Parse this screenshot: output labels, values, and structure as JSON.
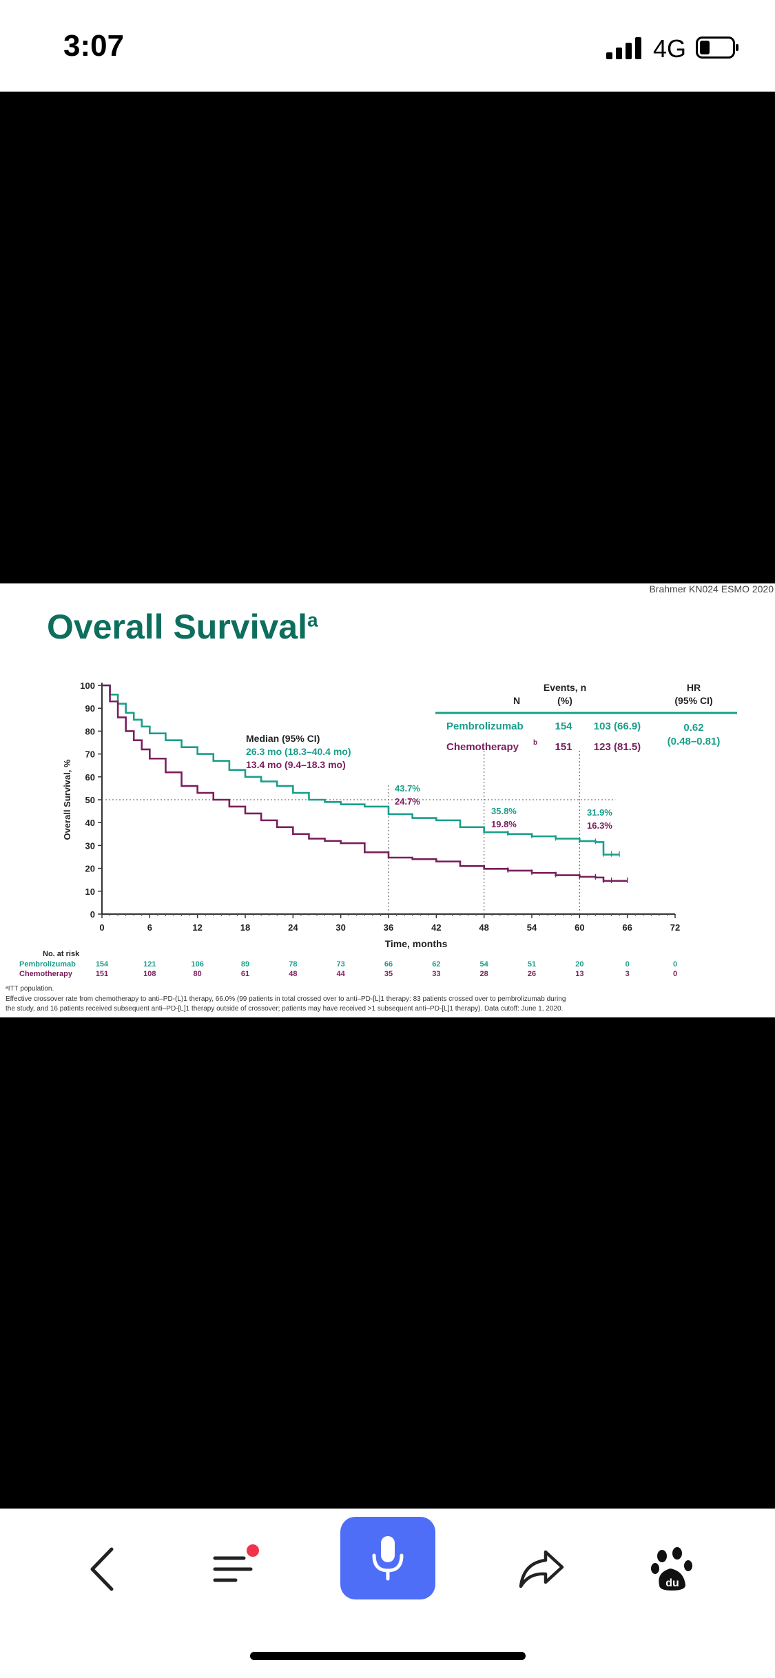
{
  "status_bar": {
    "time": "3:07",
    "network": "4G"
  },
  "slide": {
    "credit": "Brahmer  KN024  ESMO  2020",
    "title": "Overall Survival",
    "title_sup": "a",
    "legend_table": {
      "col_n": "N",
      "col_events_1": "Events, n",
      "col_events_2": "(%)",
      "col_hr_1": "HR",
      "col_hr_2": "(95% CI)",
      "row1_name": "Pembrolizumab",
      "row1_n": "154",
      "row1_events": "103 (66.9)",
      "row2_name": "Chemotherapy",
      "row2_sup": "b",
      "row2_n": "151",
      "row2_events": "123 (81.5)",
      "hr_value": "0.62",
      "hr_ci": "(0.48–0.81)"
    },
    "median": {
      "heading": "Median (95% CI)",
      "pembro": "26.3 mo (18.3–40.4 mo)",
      "chemo": "13.4 mo (9.4–18.3 mo)"
    },
    "landmarks": {
      "t36_pembro": "43.7%",
      "t36_chemo": "24.7%",
      "t48_pembro": "35.8%",
      "t48_chemo": "19.8%",
      "t60_pembro": "31.9%",
      "t60_chemo": "16.3%"
    },
    "risk_table": {
      "heading": "No. at risk",
      "pembro_label": "Pembrolizumab",
      "chemo_label": "Chemotherapy",
      "pembro": [
        "154",
        "121",
        "106",
        "89",
        "78",
        "73",
        "66",
        "62",
        "54",
        "51",
        "20",
        "0",
        "0"
      ],
      "chemo": [
        "151",
        "108",
        "80",
        "61",
        "48",
        "44",
        "35",
        "33",
        "28",
        "26",
        "13",
        "3",
        "0"
      ]
    },
    "footnotes": {
      "a": "ITT population.",
      "b": "Effective crossover rate from chemotherapy to anti–PD-(L)1  therapy, 66.0% (99 patients in total crossed over to anti–PD-[L]1  therapy: 83 patients crossed over to pembrolizumab  during",
      "b2": "the study, and 16 patients  received subsequent anti–PD-[L]1  therapy outside of crossover; patients may have received >1 subsequent anti–PD-[L]1  therapy). Data cutoff: June 1, 2020."
    }
  },
  "chart_data": {
    "type": "line",
    "xlabel": "Time, months",
    "ylabel": "Overall Survival, %",
    "x_ticks": [
      "0",
      "6",
      "12",
      "18",
      "24",
      "30",
      "36",
      "42",
      "48",
      "54",
      "60",
      "66",
      "72"
    ],
    "y_ticks": [
      "0",
      "10",
      "20",
      "30",
      "40",
      "50",
      "60",
      "70",
      "80",
      "90",
      "100"
    ],
    "xlim": [
      0,
      72
    ],
    "ylim": [
      0,
      100
    ],
    "series": [
      {
        "name": "Pembrolizumab",
        "color": "#1a9e8a",
        "x": [
          0,
          1,
          2,
          3,
          4,
          5,
          6,
          8,
          10,
          12,
          14,
          16,
          18,
          20,
          22,
          24,
          26,
          28,
          30,
          33,
          36,
          39,
          42,
          45,
          48,
          51,
          54,
          57,
          60,
          62,
          63,
          64,
          65
        ],
        "y": [
          100,
          96,
          92,
          88,
          85,
          82,
          79,
          76,
          73,
          70,
          67,
          63,
          60,
          58,
          56,
          53,
          50,
          49,
          48,
          47,
          43.7,
          42,
          41,
          38,
          35.8,
          35,
          34,
          33,
          31.9,
          31.5,
          26,
          26,
          26
        ]
      },
      {
        "name": "Chemotherapy",
        "color": "#7a1e5c",
        "x": [
          0,
          1,
          2,
          3,
          4,
          5,
          6,
          8,
          10,
          12,
          14,
          16,
          18,
          20,
          22,
          24,
          26,
          28,
          30,
          33,
          36,
          39,
          42,
          45,
          48,
          51,
          54,
          57,
          60,
          62,
          63,
          64,
          66
        ],
        "y": [
          100,
          93,
          86,
          80,
          76,
          72,
          68,
          62,
          56,
          53,
          50,
          47,
          44,
          41,
          38,
          35,
          33,
          32,
          31,
          27,
          24.7,
          24,
          23,
          21,
          19.8,
          19,
          18,
          17,
          16.3,
          16,
          14.5,
          14.5,
          14.5
        ]
      }
    ]
  }
}
